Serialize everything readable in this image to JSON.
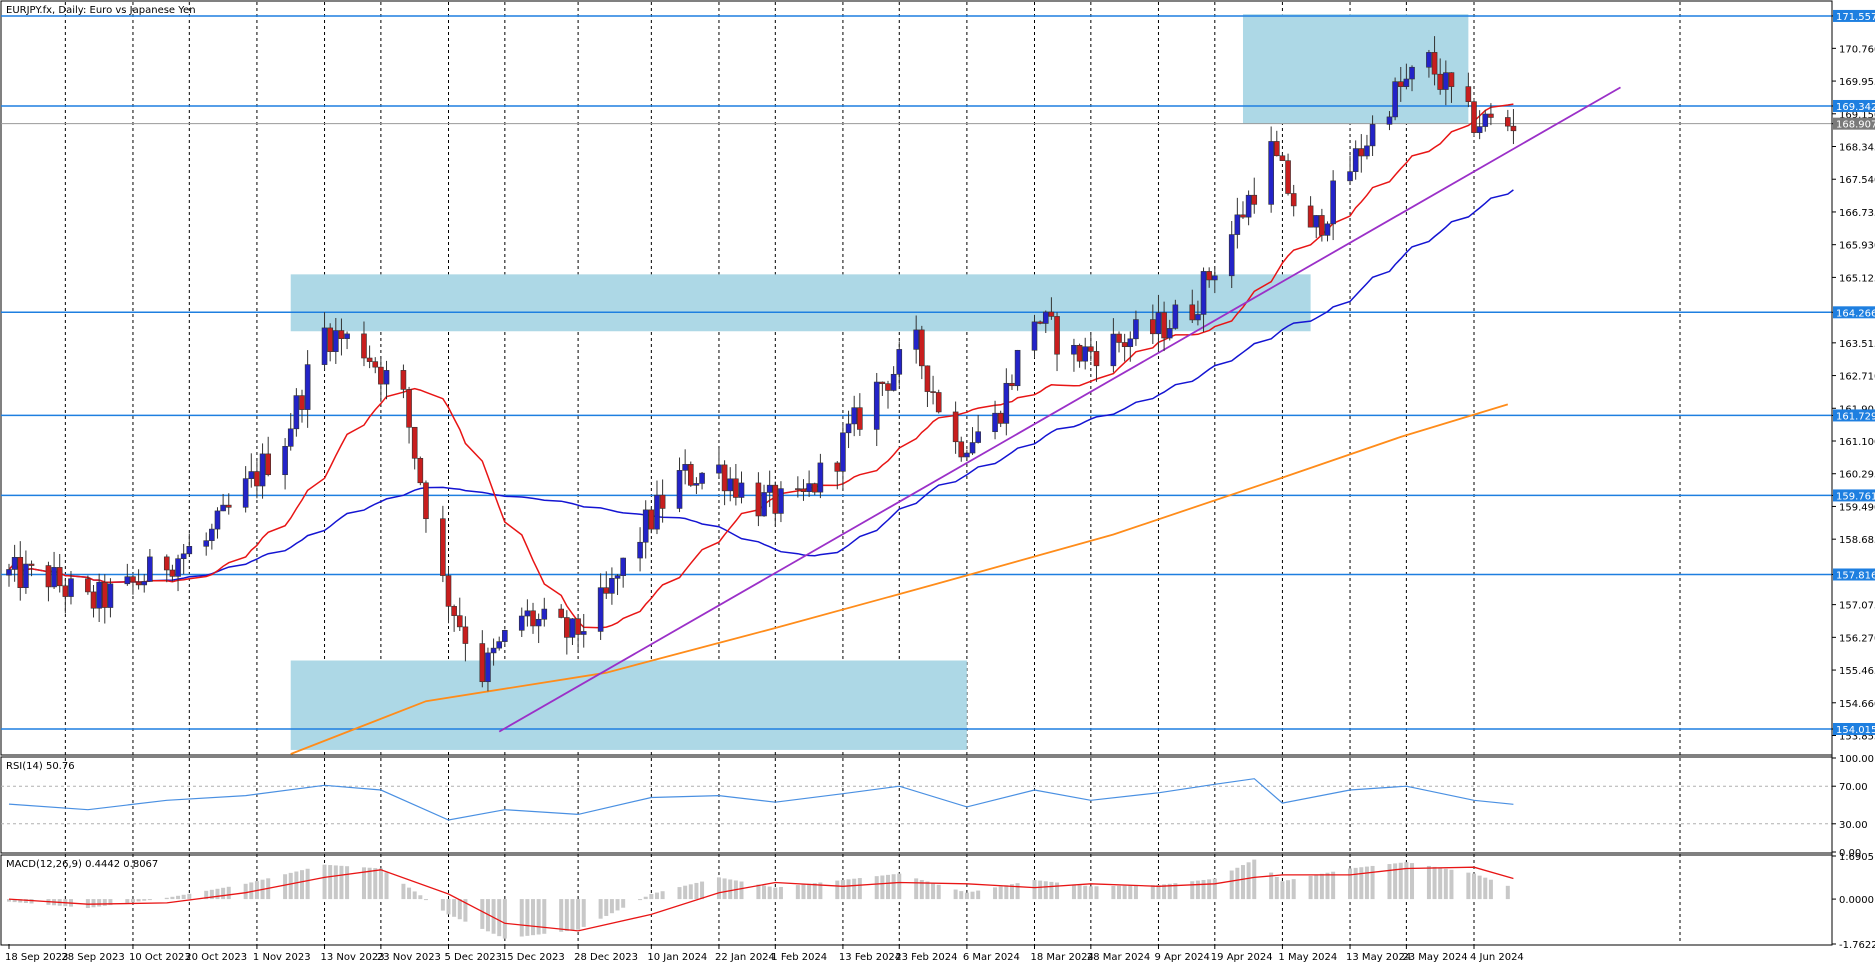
{
  "header": {
    "main_title": "EURJPY.fx, Daily:  Euro vs Japanese Yen",
    "rsi_title": "RSI(14) 50.76",
    "macd_title": "MACD(12,26,9) 0.4442 0.8067"
  },
  "colors": {
    "bull": "#2323c8",
    "bear": "#c81e1e",
    "zone": "#add8e6",
    "level": "#1e7fe0",
    "ma_fast": "#e81515",
    "ma_mid": "#1414d2",
    "ma_slow": "#ff8c1a",
    "trendline": "#9b30c8",
    "rsi": "#4a90e2",
    "macd_hist": "#c8c8c8",
    "macd_signal": "#e81515",
    "price_tag_bg": "#1e7fe0",
    "current_tag_bg": "#7a7a7a"
  },
  "chart_data": {
    "type": "candlestick",
    "symbol": "EURJPY.fx",
    "timeframe": "Daily",
    "price_axis": {
      "range": [
        153.4,
        171.9
      ],
      "ticks": [
        "171.557",
        "170.760",
        "169.955",
        "169.342",
        "169.150",
        "168.907",
        "168.345",
        "167.540",
        "166.735",
        "165.930",
        "165.125",
        "164.266",
        "163.515",
        "162.710",
        "161.905",
        "161.729",
        "161.100",
        "160.295",
        "159.761",
        "159.490",
        "158.685",
        "157.816",
        "157.075",
        "156.270",
        "155.465",
        "154.660",
        "154.015",
        "153.855"
      ]
    },
    "levels": [
      {
        "price": 171.557,
        "label": "171.557"
      },
      {
        "price": 169.342,
        "label": "169.342"
      },
      {
        "price": 164.266,
        "label": "164.266"
      },
      {
        "price": 161.729,
        "label": "161.729"
      },
      {
        "price": 159.761,
        "label": "159.761"
      },
      {
        "price": 157.816,
        "label": "157.816"
      },
      {
        "price": 154.015,
        "label": "154.015"
      }
    ],
    "current_price": {
      "price": 168.907,
      "label": "168.907"
    },
    "zones": [
      {
        "from_date": "2023-11-07",
        "to_date": "2024-05-06",
        "low": 163.8,
        "high": 165.2
      },
      {
        "from_date": "2023-11-07",
        "to_date": "2024-03-06",
        "low": 153.5,
        "high": 155.7
      },
      {
        "from_date": "2024-04-24",
        "to_date": "2024-06-03",
        "low": 168.9,
        "high": 171.6
      }
    ],
    "trendline": {
      "start": {
        "date": "2023-12-14",
        "price": 153.95
      },
      "end": {
        "date": "2024-06-30",
        "price": 169.8
      }
    },
    "ma_slow_line": [
      [
        "2023-11-07",
        153.4
      ],
      [
        "2023-12-01",
        154.7
      ],
      [
        "2024-01-02",
        155.4
      ],
      [
        "2024-02-01",
        156.5
      ],
      [
        "2024-03-01",
        157.6
      ],
      [
        "2024-04-01",
        158.8
      ],
      [
        "2024-05-01",
        160.2
      ],
      [
        "2024-05-22",
        161.2
      ],
      [
        "2024-06-10",
        162.0
      ]
    ],
    "date_labels": [
      {
        "date": "2023-09-18",
        "label": "18 Sep 2023"
      },
      {
        "date": "2023-09-28",
        "label": "28 Sep 2023"
      },
      {
        "date": "2023-10-10",
        "label": "10 Oct 2023"
      },
      {
        "date": "2023-10-20",
        "label": "20 Oct 2023"
      },
      {
        "date": "2023-11-01",
        "label": "1 Nov 2023"
      },
      {
        "date": "2023-11-13",
        "label": "13 Nov 2023"
      },
      {
        "date": "2023-11-23",
        "label": "23 Nov 2023"
      },
      {
        "date": "2023-12-05",
        "label": "5 Dec 2023"
      },
      {
        "date": "2023-12-15",
        "label": "15 Dec 2023"
      },
      {
        "date": "2023-12-28",
        "label": "28 Dec 2023"
      },
      {
        "date": "2024-01-10",
        "label": "10 Jan 2024"
      },
      {
        "date": "2024-01-22",
        "label": "22 Jan 2024"
      },
      {
        "date": "2024-02-01",
        "label": "1 Feb 2024"
      },
      {
        "date": "2024-02-13",
        "label": "13 Feb 2024"
      },
      {
        "date": "2024-02-23",
        "label": "23 Feb 2024"
      },
      {
        "date": "2024-03-06",
        "label": "6 Mar 2024"
      },
      {
        "date": "2024-03-18",
        "label": "18 Mar 2024"
      },
      {
        "date": "2024-03-28",
        "label": "28 Mar 2024"
      },
      {
        "date": "2024-04-09",
        "label": "9 Apr 2024"
      },
      {
        "date": "2024-04-19",
        "label": "19 Apr 2024"
      },
      {
        "date": "2024-05-01",
        "label": "1 May 2024"
      },
      {
        "date": "2024-05-13",
        "label": "13 May 2024"
      },
      {
        "date": "2024-05-23",
        "label": "23 May 2024"
      },
      {
        "date": "2024-06-04",
        "label": "4 Jun 2024"
      }
    ],
    "closes": [
      {
        "date": "2023-09-18",
        "close": 157.8
      },
      {
        "date": "2023-09-25",
        "close": 157.75
      },
      {
        "date": "2023-10-02",
        "close": 157.1
      },
      {
        "date": "2023-10-09",
        "close": 157.45
      },
      {
        "date": "2023-10-16",
        "close": 158.15
      },
      {
        "date": "2023-10-23",
        "close": 158.6
      },
      {
        "date": "2023-10-30",
        "close": 159.9
      },
      {
        "date": "2023-11-06",
        "close": 161.2
      },
      {
        "date": "2023-11-13",
        "close": 163.8
      },
      {
        "date": "2023-11-20",
        "close": 163.4
      },
      {
        "date": "2023-11-27",
        "close": 162.1
      },
      {
        "date": "2023-12-04",
        "close": 157.6
      },
      {
        "date": "2023-12-11",
        "close": 155.4
      },
      {
        "date": "2023-12-18",
        "close": 156.8
      },
      {
        "date": "2023-12-27",
        "close": 156.3
      },
      {
        "date": "2024-01-02",
        "close": 157.2
      },
      {
        "date": "2024-01-08",
        "close": 158.8
      },
      {
        "date": "2024-01-15",
        "close": 160.2
      },
      {
        "date": "2024-01-22",
        "close": 160.4
      },
      {
        "date": "2024-01-29",
        "close": 159.6
      },
      {
        "date": "2024-02-05",
        "close": 159.5
      },
      {
        "date": "2024-02-12",
        "close": 160.8
      },
      {
        "date": "2024-02-19",
        "close": 162.4
      },
      {
        "date": "2024-02-26",
        "close": 163.4
      },
      {
        "date": "2024-03-04",
        "close": 161.0
      },
      {
        "date": "2024-03-11",
        "close": 161.6
      },
      {
        "date": "2024-03-18",
        "close": 164.2
      },
      {
        "date": "2024-03-25",
        "close": 163.2
      },
      {
        "date": "2024-04-01",
        "close": 163.5
      },
      {
        "date": "2024-04-08",
        "close": 163.8
      },
      {
        "date": "2024-04-15",
        "close": 164.4
      },
      {
        "date": "2024-04-22",
        "close": 166.2
      },
      {
        "date": "2024-04-29",
        "close": 168.2
      },
      {
        "date": "2024-05-06",
        "close": 166.1
      },
      {
        "date": "2024-05-13",
        "close": 167.8
      },
      {
        "date": "2024-05-20",
        "close": 169.5
      },
      {
        "date": "2024-05-27",
        "close": 170.4
      },
      {
        "date": "2024-06-03",
        "close": 169.0
      },
      {
        "date": "2024-06-10",
        "close": 168.9
      }
    ],
    "rsi": {
      "period": 14,
      "last": 50.76,
      "range": [
        0,
        100
      ],
      "ticks": [
        "100.00",
        "70.00",
        "30.00",
        "0.00"
      ],
      "levels": [
        70,
        30
      ],
      "series": [
        [
          "2023-09-18",
          51
        ],
        [
          "2023-10-02",
          45
        ],
        [
          "2023-10-16",
          55
        ],
        [
          "2023-10-30",
          60
        ],
        [
          "2023-11-13",
          71
        ],
        [
          "2023-11-23",
          66
        ],
        [
          "2023-12-05",
          34
        ],
        [
          "2023-12-15",
          45
        ],
        [
          "2023-12-28",
          40
        ],
        [
          "2024-01-10",
          58
        ],
        [
          "2024-01-22",
          60
        ],
        [
          "2024-02-01",
          53
        ],
        [
          "2024-02-13",
          62
        ],
        [
          "2024-02-23",
          70
        ],
        [
          "2024-03-06",
          48
        ],
        [
          "2024-03-18",
          66
        ],
        [
          "2024-03-28",
          55
        ],
        [
          "2024-04-09",
          63
        ],
        [
          "2024-04-19",
          72
        ],
        [
          "2024-04-26",
          78
        ],
        [
          "2024-05-01",
          52
        ],
        [
          "2024-05-13",
          66
        ],
        [
          "2024-05-23",
          70
        ],
        [
          "2024-06-04",
          55
        ],
        [
          "2024-06-11",
          50.76
        ]
      ]
    },
    "macd": {
      "fast": 12,
      "slow": 26,
      "signal": 9,
      "main_last": 0.4442,
      "signal_last": 0.8067,
      "range": [
        -1.7622,
        1.6905
      ],
      "ticks": [
        "1.6905",
        "0.0000",
        "-1.7622"
      ],
      "histogram": [
        [
          "2023-09-18",
          -0.1
        ],
        [
          "2023-10-02",
          -0.35
        ],
        [
          "2023-10-16",
          0.05
        ],
        [
          "2023-10-30",
          0.6
        ],
        [
          "2023-11-13",
          1.35
        ],
        [
          "2023-11-23",
          1.2
        ],
        [
          "2023-12-05",
          -0.6
        ],
        [
          "2023-12-15",
          -1.55
        ],
        [
          "2023-12-28",
          -1.2
        ],
        [
          "2024-01-10",
          0.2
        ],
        [
          "2024-01-22",
          0.85
        ],
        [
          "2024-02-01",
          0.45
        ],
        [
          "2024-02-13",
          0.75
        ],
        [
          "2024-02-23",
          1.0
        ],
        [
          "2024-03-06",
          0.25
        ],
        [
          "2024-03-18",
          0.75
        ],
        [
          "2024-03-28",
          0.5
        ],
        [
          "2024-04-09",
          0.55
        ],
        [
          "2024-04-19",
          0.8
        ],
        [
          "2024-04-26",
          1.55
        ],
        [
          "2024-05-01",
          0.7
        ],
        [
          "2024-05-13",
          1.2
        ],
        [
          "2024-05-23",
          1.45
        ],
        [
          "2024-06-04",
          1.0
        ],
        [
          "2024-06-11",
          0.44
        ]
      ],
      "signal_line": [
        [
          "2023-09-18",
          0.0
        ],
        [
          "2023-10-02",
          -0.2
        ],
        [
          "2023-10-16",
          -0.15
        ],
        [
          "2023-10-30",
          0.25
        ],
        [
          "2023-11-13",
          0.85
        ],
        [
          "2023-11-23",
          1.15
        ],
        [
          "2023-12-05",
          0.2
        ],
        [
          "2023-12-15",
          -0.95
        ],
        [
          "2023-12-28",
          -1.25
        ],
        [
          "2024-01-10",
          -0.6
        ],
        [
          "2024-01-22",
          0.25
        ],
        [
          "2024-02-01",
          0.65
        ],
        [
          "2024-02-13",
          0.5
        ],
        [
          "2024-02-23",
          0.65
        ],
        [
          "2024-03-06",
          0.6
        ],
        [
          "2024-03-18",
          0.45
        ],
        [
          "2024-03-28",
          0.6
        ],
        [
          "2024-04-09",
          0.5
        ],
        [
          "2024-04-19",
          0.6
        ],
        [
          "2024-04-26",
          0.85
        ],
        [
          "2024-05-01",
          0.95
        ],
        [
          "2024-05-13",
          0.95
        ],
        [
          "2024-05-23",
          1.2
        ],
        [
          "2024-06-04",
          1.25
        ],
        [
          "2024-06-11",
          0.8067
        ]
      ]
    }
  }
}
